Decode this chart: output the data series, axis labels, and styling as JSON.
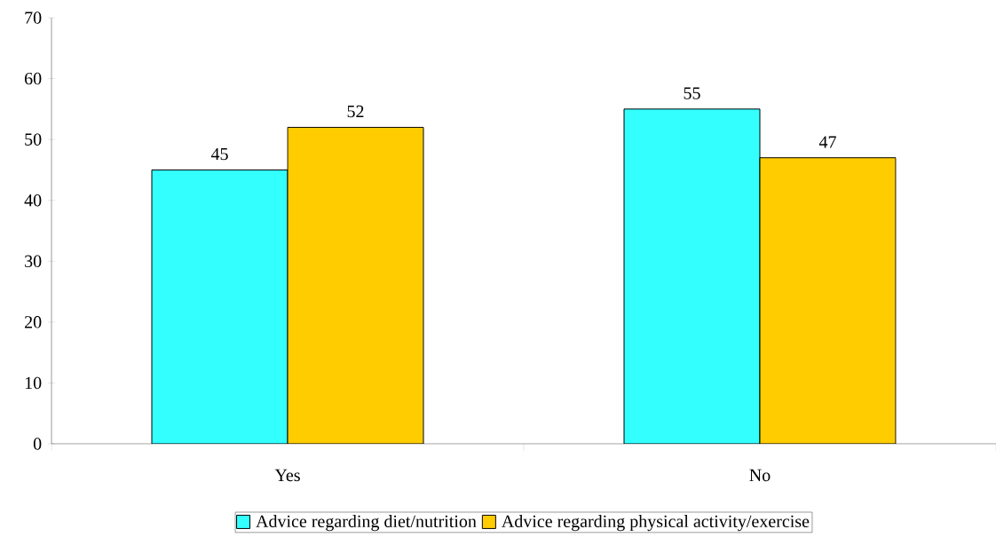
{
  "chart_data": {
    "type": "bar",
    "categories": [
      "Yes",
      "No"
    ],
    "series": [
      {
        "name": "Advice regarding diet/nutrition",
        "color": "#33ffff",
        "values": [
          45,
          55
        ]
      },
      {
        "name": "Advice regarding physical activity/exercise",
        "color": "#ffcc00",
        "values": [
          52,
          47
        ]
      }
    ],
    "ylim": [
      0,
      70
    ],
    "yticks": [
      0,
      10,
      20,
      30,
      40,
      50,
      60,
      70
    ],
    "data_labels": true,
    "legend": "bottom",
    "grid": false
  }
}
